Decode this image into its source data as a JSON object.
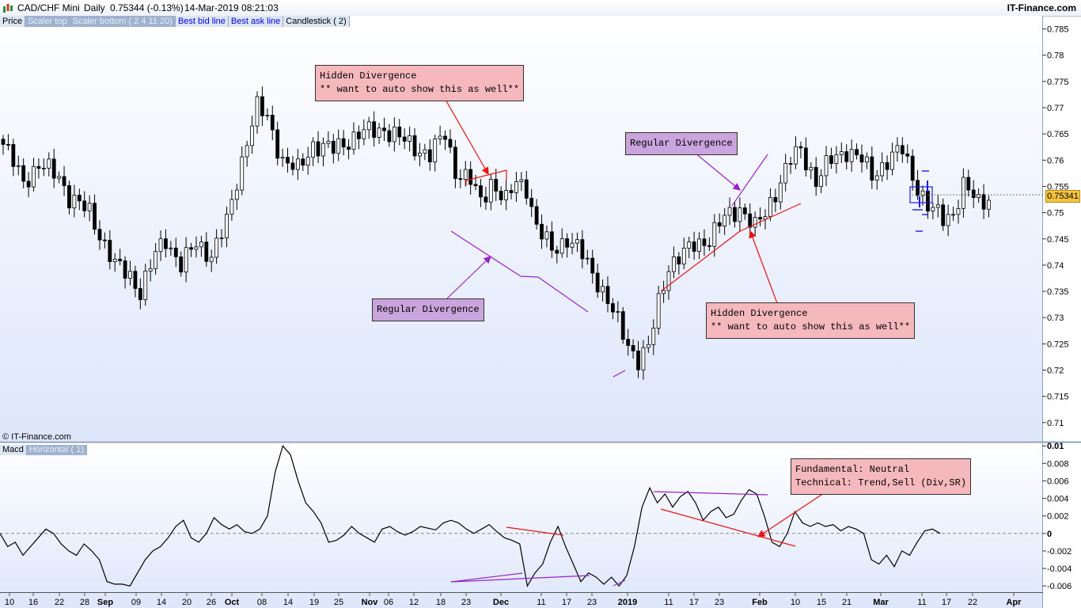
{
  "header": {
    "symbol": "CAD/CHF Mini",
    "timeframe": "Daily",
    "quote": "0.75344 (-0.13%)",
    "datetime": "14-Mar-2019 08:21:03",
    "brand": "IT-Finance.com"
  },
  "legend": {
    "price": "Price",
    "scaler_top": "Scaler top",
    "scaler_bottom": "Scaler bottom ( 2 4 11 20)",
    "best_bid": "Best bid line",
    "best_ask": "Best ask line",
    "candlestick": "Candlestick ( 2)"
  },
  "macd_legend": {
    "macd": "Macd",
    "horizontal": "Horizontal ( 1)"
  },
  "copyright": "© IT-Finance.com",
  "last_price": "0.75341",
  "annotations": {
    "hidden_top": "Hidden Divergence\n** want to auto show this as well**",
    "regular_top": "Regular Divergence",
    "regular_bottom": "Regular Divergence",
    "hidden_bottom": "Hidden Divergence\n** want to auto show this as well**",
    "fundamental": "Fundamental: Neutral\nTechnical: Trend,Sell (Div,SR)"
  },
  "colors": {
    "background_top": "#ffffff",
    "background_bottom": "#dde6fb",
    "red": "#ee1111",
    "purple": "#9a22cc",
    "blue": "#1a1aee"
  },
  "chart_data": [
    {
      "type": "candlestick",
      "title": "CAD/CHF Mini Daily",
      "y_axis_ticks": [
        "0.785",
        "0.78",
        "0.775",
        "0.77",
        "0.765",
        "0.76",
        "0.755",
        "0.75",
        "0.745",
        "0.74",
        "0.735",
        "0.73",
        "0.725",
        "0.72",
        "0.715",
        "0.71"
      ],
      "ylim": [
        0.7065,
        0.7875
      ],
      "x_axis_ticks": [
        "10",
        "16",
        "22",
        "28",
        "Sep",
        "09",
        "14",
        "20",
        "26",
        "Oct",
        "08",
        "14",
        "19",
        "25",
        "Nov",
        "06",
        "12",
        "18",
        "23",
        "Dec",
        "11",
        "17",
        "23",
        "2019",
        "11",
        "17",
        "23",
        "Feb",
        "10",
        "15",
        "21",
        "Mar",
        "11",
        "17",
        "22",
        "Apr"
      ],
      "close_anchors": [
        [
          0,
          0.763
        ],
        [
          4,
          0.756
        ],
        [
          7,
          0.759
        ],
        [
          11,
          0.757
        ],
        [
          13,
          0.753
        ],
        [
          17,
          0.75
        ],
        [
          20,
          0.744
        ],
        [
          22,
          0.74
        ],
        [
          25,
          0.738
        ],
        [
          27,
          0.735
        ],
        [
          30,
          0.742
        ],
        [
          32,
          0.745
        ],
        [
          35,
          0.74
        ],
        [
          38,
          0.744
        ],
        [
          41,
          0.742
        ],
        [
          44,
          0.748
        ],
        [
          48,
          0.764
        ],
        [
          50,
          0.77
        ],
        [
          52,
          0.768
        ],
        [
          55,
          0.76
        ],
        [
          58,
          0.758
        ],
        [
          61,
          0.763
        ],
        [
          65,
          0.762
        ],
        [
          70,
          0.765
        ],
        [
          75,
          0.766
        ],
        [
          80,
          0.763
        ],
        [
          84,
          0.761
        ],
        [
          87,
          0.765
        ],
        [
          89,
          0.758
        ],
        [
          92,
          0.756
        ],
        [
          94,
          0.752
        ],
        [
          96,
          0.756
        ],
        [
          99,
          0.752
        ],
        [
          101,
          0.756
        ],
        [
          103,
          0.755
        ],
        [
          105,
          0.747
        ],
        [
          108,
          0.743
        ],
        [
          111,
          0.745
        ],
        [
          114,
          0.742
        ],
        [
          117,
          0.737
        ],
        [
          120,
          0.731
        ],
        [
          123,
          0.725
        ],
        [
          125,
          0.722
        ],
        [
          127,
          0.724
        ],
        [
          129,
          0.733
        ],
        [
          131,
          0.74
        ],
        [
          134,
          0.742
        ],
        [
          136,
          0.744
        ],
        [
          139,
          0.745
        ],
        [
          142,
          0.749
        ],
        [
          145,
          0.751
        ],
        [
          148,
          0.747
        ],
        [
          150,
          0.75
        ],
        [
          152,
          0.754
        ],
        [
          155,
          0.76
        ],
        [
          157,
          0.762
        ],
        [
          160,
          0.756
        ],
        [
          163,
          0.76
        ],
        [
          166,
          0.762
        ],
        [
          169,
          0.76
        ],
        [
          171,
          0.757
        ],
        [
          174,
          0.76
        ],
        [
          177,
          0.762
        ],
        [
          179,
          0.757
        ],
        [
          182,
          0.751
        ],
        [
          185,
          0.749
        ],
        [
          187,
          0.75
        ],
        [
          189,
          0.755
        ],
        [
          192,
          0.752
        ],
        [
          194,
          0.753
        ]
      ],
      "last_price": 0.75341
    },
    {
      "type": "line",
      "title": "Macd",
      "y_axis_ticks": [
        "0.01",
        "0.008",
        "0.006",
        "0.004",
        "0.002",
        "0",
        "-0.002",
        "-0.004",
        "-0.006"
      ],
      "ylim": [
        -0.0068,
        0.0102
      ],
      "values": [
        0.0,
        -0.0015,
        -0.001,
        -0.0025,
        -0.0015,
        -0.0005,
        0.0005,
        0.0,
        -0.0012,
        -0.002,
        -0.0025,
        -0.0012,
        -0.002,
        -0.003,
        -0.0055,
        -0.0058,
        -0.0058,
        -0.006,
        -0.0045,
        -0.003,
        -0.002,
        -0.0015,
        -0.0005,
        0.0008,
        0.0015,
        -0.0005,
        -0.001,
        0.0,
        0.0018,
        0.001,
        0.0005,
        0.001,
        0.0002,
        0.0,
        0.0005,
        0.002,
        0.007,
        0.01,
        0.009,
        0.006,
        0.0035,
        0.0025,
        0.0012,
        -0.001,
        -0.0008,
        -0.0002,
        0.0008,
        0.0,
        -0.0005,
        -0.001,
        0.0005,
        0.0008,
        0.0002,
        -0.0002,
        0.0002,
        0.0008,
        0.0006,
        0.0004,
        0.0012,
        0.0015,
        0.0012,
        0.0005,
        0.0,
        0.0005,
        0.001,
        0.0002,
        -0.0005,
        -0.0008,
        -0.0012,
        -0.006,
        -0.0045,
        -0.0035,
        -0.001,
        0.0008,
        -0.0015,
        -0.0035,
        -0.0055,
        -0.0045,
        -0.005,
        -0.0058,
        -0.005,
        -0.006,
        -0.0048,
        -0.0015,
        0.003,
        0.0052,
        0.0035,
        0.0045,
        0.003,
        0.0042,
        0.0048,
        0.0035,
        0.0015,
        0.0025,
        0.003,
        0.0018,
        0.0022,
        0.0038,
        0.005,
        0.0045,
        0.002,
        -0.001,
        -0.0015,
        0.0,
        0.0025,
        0.0012,
        0.0008,
        0.0012,
        0.0008,
        0.001,
        0.0003,
        0.0008,
        0.0005,
        0.0,
        -0.003,
        -0.0035,
        -0.0025,
        -0.0038,
        -0.002,
        -0.0025,
        -0.001,
        0.0003,
        0.0005,
        0.0
      ]
    }
  ]
}
